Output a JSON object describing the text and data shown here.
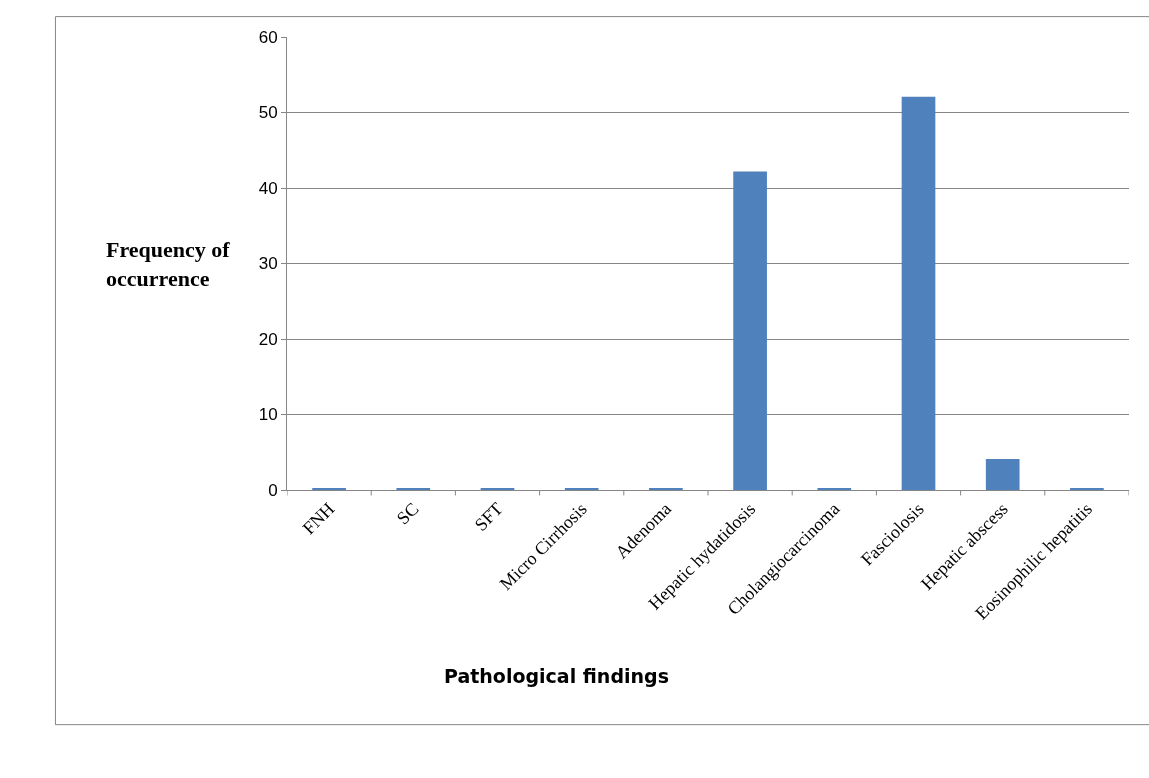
{
  "chart_data": {
    "type": "bar",
    "xlabel": "Pathological findings",
    "ylabel": "Frequency of occurrence",
    "categories": [
      "FNH",
      "SC",
      "SFT",
      "Micro Cirrhosis",
      "Adenoma",
      "Hepatic hydatidosis",
      "Cholangiocarcinoma",
      "Fasciolosis",
      "Hepatic abscess",
      "Eosinophilic hepatitis"
    ],
    "values": [
      0.2,
      0.2,
      0.2,
      0.2,
      0.2,
      42.2,
      0.2,
      52.1,
      4.1,
      0.2
    ],
    "color": "#4f81bd",
    "ylim": [
      0,
      60
    ],
    "yticks": [
      0,
      10,
      20,
      30,
      40,
      50,
      60
    ],
    "grid": "y",
    "legend": false
  }
}
